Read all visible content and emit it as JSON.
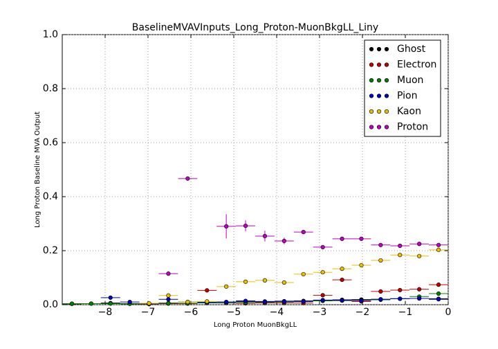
{
  "chart_data": {
    "type": "scatter",
    "title": "BaselineMVAVInputs_Long_Proton-MuonBkgLL_Liny",
    "x_label": "Long Proton MuonBkgLL",
    "y_label": "Long Proton Baseline MVA Output",
    "x": [
      -8.775,
      -8.325,
      -7.875,
      -7.425,
      -6.975,
      -6.525,
      -6.075,
      -5.625,
      -5.175,
      -4.725,
      -4.275,
      -3.825,
      -3.375,
      -2.925,
      -2.475,
      -2.025,
      -1.575,
      -1.125,
      -0.675,
      -0.225
    ],
    "xerr": 0.225,
    "series": [
      {
        "name": "Ghost",
        "color": "#000000",
        "values": [
          0.003,
          0.004,
          0.006,
          0.004,
          0.003,
          0.006,
          0.005,
          0.008,
          0.01,
          0.012,
          0.012,
          0.013,
          0.014,
          0.016,
          0.018,
          0.019,
          0.02,
          0.022,
          0.023,
          0.022
        ]
      },
      {
        "name": "Electron",
        "color": "#c00000",
        "values": [
          null,
          null,
          null,
          null,
          0.002,
          0.004,
          0.004,
          0.053,
          0.006,
          0.005,
          0.006,
          0.006,
          0.006,
          0.035,
          0.092,
          0.012,
          0.049,
          0.054,
          0.057,
          0.074
        ]
      },
      {
        "name": "Muon",
        "color": "#007f00",
        "values": [
          0.004,
          0.004,
          0.004,
          0.003,
          0.003,
          0.005,
          0.005,
          0.006,
          0.007,
          0.008,
          0.009,
          0.01,
          0.012,
          0.014,
          0.015,
          0.016,
          0.018,
          0.022,
          0.03,
          0.041
        ]
      },
      {
        "name": "Pion",
        "color": "#0000bf",
        "values": [
          null,
          null,
          0.026,
          0.01,
          0.004,
          0.02,
          0.01,
          0.009,
          0.01,
          0.014,
          0.011,
          0.012,
          0.012,
          0.017,
          0.016,
          0.015,
          0.02,
          0.022,
          0.023,
          0.02
        ]
      },
      {
        "name": "Kaon",
        "color": "#e6c000",
        "values": [
          null,
          null,
          null,
          null,
          0.005,
          0.034,
          0.01,
          0.012,
          0.067,
          0.085,
          0.09,
          0.082,
          0.113,
          0.12,
          0.133,
          0.146,
          0.164,
          0.184,
          0.18,
          0.203
        ]
      },
      {
        "name": "Proton",
        "color": "#bf00bf",
        "values": [
          null,
          null,
          null,
          null,
          null,
          0.115,
          0.467,
          null,
          0.29,
          0.292,
          0.254,
          0.236,
          0.269,
          0.213,
          0.244,
          0.244,
          0.221,
          0.218,
          0.225,
          0.221
        ],
        "errors": [
          null,
          null,
          null,
          null,
          null,
          0.005,
          0.005,
          null,
          0.045,
          0.02,
          0.02,
          0.012,
          0.005,
          0.005,
          0.005,
          0.005,
          0.004,
          0.004,
          0.004,
          0.004
        ]
      }
    ],
    "xlim": [
      -9,
      0
    ],
    "ylim": [
      0,
      1
    ],
    "xticks": [
      {
        "value": -8,
        "label": "−8"
      },
      {
        "value": -7,
        "label": "−7"
      },
      {
        "value": -6,
        "label": "−6"
      },
      {
        "value": -5,
        "label": "−5"
      },
      {
        "value": -4,
        "label": "−4"
      },
      {
        "value": -3,
        "label": "−3"
      },
      {
        "value": -2,
        "label": "−2"
      },
      {
        "value": -1,
        "label": "−1"
      },
      0
    ],
    "yticks": [
      {
        "value": 0,
        "label": "0.0"
      },
      {
        "value": 0.2,
        "label": "0.2"
      },
      {
        "value": 0.4,
        "label": "0.4"
      },
      {
        "value": 0.6,
        "label": "0.6"
      },
      {
        "value": 0.8,
        "label": "0.8"
      },
      {
        "value": 1,
        "label": "1.0"
      }
    ],
    "grid": true,
    "legend": "upper right"
  }
}
